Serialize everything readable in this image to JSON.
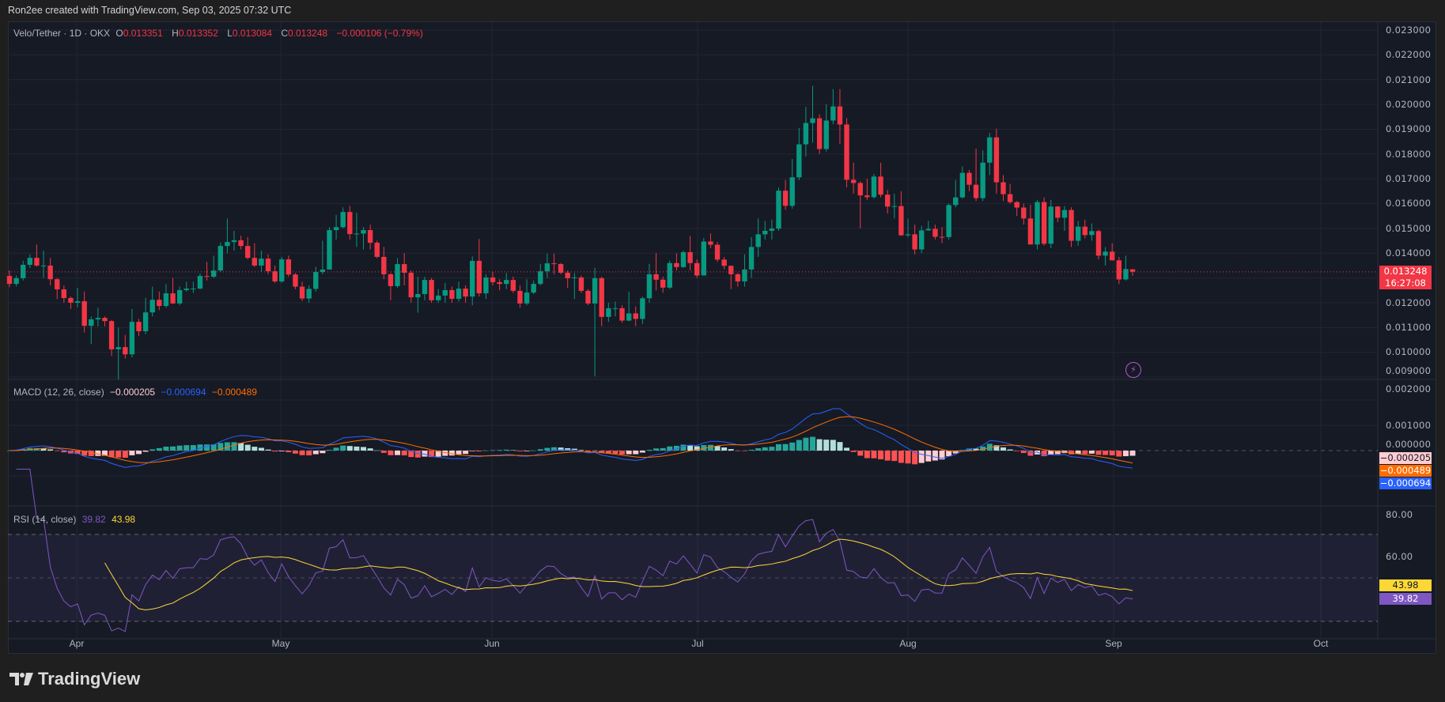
{
  "credit": "Ron2ee created with TradingView.com, Sep 03, 2025 07:32 UTC",
  "legend": {
    "symbol": "Velo/Tether · 1D · OKX",
    "o_label": "O",
    "o": "0.013351",
    "h_label": "H",
    "h": "0.013352",
    "l_label": "L",
    "l": "0.013084",
    "c_label": "C",
    "c": "0.013248",
    "change": "−0.000106 (−0.79%)"
  },
  "price_axis": [
    "0.023000",
    "0.022000",
    "0.021000",
    "0.020000",
    "0.019000",
    "0.018000",
    "0.017000",
    "0.016000",
    "0.015000",
    "0.014000",
    "0.012000",
    "0.011000",
    "0.010000",
    "0.009000"
  ],
  "price_tag": {
    "price": "0.013248",
    "countdown": "16:27:08"
  },
  "macd": {
    "title": "MACD (12, 26, close)",
    "histogram": "−0.000205",
    "macd": "−0.000694",
    "signal": "−0.000489",
    "axis": [
      "0.002000",
      "0.001000",
      "0.000000"
    ]
  },
  "rsi": {
    "title": "RSI (14, close)",
    "rsi": "39.82",
    "ma": "43.98",
    "axis": [
      "80.00",
      "60.00"
    ]
  },
  "months": [
    "Apr",
    "May",
    "Jun",
    "Jul",
    "Aug",
    "Sep",
    "Oct"
  ],
  "logo": "TradingView",
  "colors": {
    "up": "#089981",
    "down": "#f23645",
    "macd": "#2962ff",
    "signal": "#ff6d00",
    "rsi": "#7e57c2",
    "rsi_ma": "#fdd835"
  },
  "chart_data": {
    "type": "candlestick",
    "title": "Velo/Tether · 1D · OKX",
    "interval": "1D",
    "x_range": [
      "Mar",
      "Oct"
    ],
    "ylim": [
      0.009,
      0.023
    ],
    "grid": true,
    "current_price": 0.013248,
    "indicators": [
      "MACD (12, 26, close)",
      "RSI (14, close)"
    ],
    "rsi_levels": [
      70,
      50,
      30
    ],
    "candles_ohlc": [
      [
        0.01308,
        0.0133,
        0.01263,
        0.01276
      ],
      [
        0.01276,
        0.0131,
        0.01266,
        0.01299
      ],
      [
        0.01299,
        0.0137,
        0.0129,
        0.01353
      ],
      [
        0.01353,
        0.01395,
        0.0134,
        0.01381
      ],
      [
        0.01381,
        0.01435,
        0.01345,
        0.0135
      ],
      [
        0.0135,
        0.0141,
        0.013,
        0.0135
      ],
      [
        0.0135,
        0.0138,
        0.0127,
        0.01295
      ],
      [
        0.01295,
        0.013,
        0.01215,
        0.01254
      ],
      [
        0.01254,
        0.0127,
        0.012,
        0.01219
      ],
      [
        0.01219,
        0.01225,
        0.01175,
        0.012
      ],
      [
        0.012,
        0.0126,
        0.01182,
        0.01206
      ],
      [
        0.01206,
        0.01245,
        0.0108,
        0.01107
      ],
      [
        0.01107,
        0.01145,
        0.01033,
        0.01133
      ],
      [
        0.01133,
        0.0118,
        0.01105,
        0.01139
      ],
      [
        0.01139,
        0.01145,
        0.01105,
        0.01126
      ],
      [
        0.01126,
        0.0113,
        0.00985,
        0.01012
      ],
      [
        0.01012,
        0.011,
        0.0089,
        0.01021
      ],
      [
        0.01021,
        0.0107,
        0.00975,
        0.00992
      ],
      [
        0.00992,
        0.01175,
        0.0098,
        0.01123
      ],
      [
        0.01123,
        0.01135,
        0.01065,
        0.01085
      ],
      [
        0.01085,
        0.0122,
        0.01073,
        0.01161
      ],
      [
        0.01161,
        0.01265,
        0.01145,
        0.01212
      ],
      [
        0.01212,
        0.01245,
        0.0117,
        0.01187
      ],
      [
        0.01187,
        0.01275,
        0.0118,
        0.01238
      ],
      [
        0.01238,
        0.013,
        0.01195,
        0.01197
      ],
      [
        0.01197,
        0.01265,
        0.0119,
        0.01251
      ],
      [
        0.01251,
        0.01285,
        0.01245,
        0.01257
      ],
      [
        0.01257,
        0.01285,
        0.0124,
        0.01257
      ],
      [
        0.01257,
        0.01318,
        0.01255,
        0.01308
      ],
      [
        0.01308,
        0.01365,
        0.0129,
        0.01305
      ],
      [
        0.01305,
        0.0139,
        0.013,
        0.0133
      ],
      [
        0.0133,
        0.01443,
        0.01325,
        0.01429
      ],
      [
        0.01429,
        0.0154,
        0.014,
        0.01445
      ],
      [
        0.01445,
        0.0149,
        0.0141,
        0.01452
      ],
      [
        0.01452,
        0.0147,
        0.01415,
        0.01429
      ],
      [
        0.01429,
        0.01465,
        0.01375,
        0.01381
      ],
      [
        0.01381,
        0.0144,
        0.01345,
        0.0135
      ],
      [
        0.0135,
        0.0141,
        0.01325,
        0.01378
      ],
      [
        0.01378,
        0.01395,
        0.01315,
        0.01327
      ],
      [
        0.01327,
        0.0135,
        0.0128,
        0.01286
      ],
      [
        0.01286,
        0.01385,
        0.0128,
        0.01375
      ],
      [
        0.01375,
        0.0139,
        0.01305,
        0.01314
      ],
      [
        0.01314,
        0.0132,
        0.01255,
        0.01265
      ],
      [
        0.01265,
        0.01285,
        0.01207,
        0.01217
      ],
      [
        0.01217,
        0.0127,
        0.012,
        0.01256
      ],
      [
        0.01256,
        0.01345,
        0.01245,
        0.01324
      ],
      [
        0.01324,
        0.0145,
        0.01315,
        0.01334
      ],
      [
        0.01334,
        0.01505,
        0.01334,
        0.01493
      ],
      [
        0.01493,
        0.01555,
        0.01455,
        0.01505
      ],
      [
        0.01505,
        0.01585,
        0.015,
        0.01566
      ],
      [
        0.01566,
        0.01591,
        0.01455,
        0.01477
      ],
      [
        0.01477,
        0.01563,
        0.01425,
        0.01479
      ],
      [
        0.01479,
        0.01505,
        0.01415,
        0.01493
      ],
      [
        0.01493,
        0.01515,
        0.01415,
        0.01442
      ],
      [
        0.01442,
        0.0145,
        0.0138,
        0.01385
      ],
      [
        0.01385,
        0.01425,
        0.01295,
        0.01315
      ],
      [
        0.01315,
        0.0132,
        0.0121,
        0.01267
      ],
      [
        0.01267,
        0.0138,
        0.0126,
        0.01356
      ],
      [
        0.01356,
        0.014,
        0.0127,
        0.01321
      ],
      [
        0.01321,
        0.0133,
        0.012,
        0.01222
      ],
      [
        0.01222,
        0.01305,
        0.0116,
        0.01235
      ],
      [
        0.01235,
        0.01305,
        0.0121,
        0.01292
      ],
      [
        0.01292,
        0.013,
        0.012,
        0.0121
      ],
      [
        0.0121,
        0.01255,
        0.012,
        0.01229
      ],
      [
        0.01229,
        0.0128,
        0.012,
        0.01251
      ],
      [
        0.01251,
        0.01265,
        0.012,
        0.01216
      ],
      [
        0.01216,
        0.01285,
        0.01205,
        0.01257
      ],
      [
        0.01257,
        0.0127,
        0.012,
        0.01225
      ],
      [
        0.01225,
        0.01387,
        0.0119,
        0.01369
      ],
      [
        0.01369,
        0.01457,
        0.01225,
        0.01238
      ],
      [
        0.01238,
        0.01315,
        0.01215,
        0.01302
      ],
      [
        0.01302,
        0.01325,
        0.0127,
        0.01283
      ],
      [
        0.01283,
        0.01295,
        0.0125,
        0.01276
      ],
      [
        0.01276,
        0.0132,
        0.01255,
        0.01292
      ],
      [
        0.01292,
        0.01305,
        0.0124,
        0.01248
      ],
      [
        0.01248,
        0.0127,
        0.0118,
        0.01197
      ],
      [
        0.01197,
        0.01295,
        0.0119,
        0.01241
      ],
      [
        0.01241,
        0.0129,
        0.01235,
        0.01276
      ],
      [
        0.01276,
        0.01357,
        0.0127,
        0.01327
      ],
      [
        0.01327,
        0.01398,
        0.013,
        0.01359
      ],
      [
        0.01359,
        0.01398,
        0.01315,
        0.01356
      ],
      [
        0.01356,
        0.0136,
        0.01315,
        0.01321
      ],
      [
        0.01321,
        0.0133,
        0.0126,
        0.01299
      ],
      [
        0.01299,
        0.0132,
        0.01215,
        0.01302
      ],
      [
        0.01302,
        0.0131,
        0.0124,
        0.01248
      ],
      [
        0.01248,
        0.01255,
        0.0119,
        0.01197
      ],
      [
        0.01197,
        0.0134,
        0.00903,
        0.01299
      ],
      [
        0.01299,
        0.01305,
        0.01105,
        0.01143
      ],
      [
        0.01143,
        0.012,
        0.01123,
        0.01178
      ],
      [
        0.01178,
        0.01205,
        0.01145,
        0.01178
      ],
      [
        0.01178,
        0.0119,
        0.0112,
        0.01128
      ],
      [
        0.01128,
        0.01245,
        0.01125,
        0.01157
      ],
      [
        0.01157,
        0.01185,
        0.01105,
        0.01135
      ],
      [
        0.01135,
        0.01225,
        0.01115,
        0.01218
      ],
      [
        0.01218,
        0.01357,
        0.012,
        0.01315
      ],
      [
        0.01315,
        0.014,
        0.0125,
        0.01293
      ],
      [
        0.01293,
        0.01305,
        0.0124,
        0.01261
      ],
      [
        0.01261,
        0.0137,
        0.01255,
        0.0136
      ],
      [
        0.0136,
        0.014,
        0.0133,
        0.01344
      ],
      [
        0.01344,
        0.0141,
        0.0134,
        0.01404
      ],
      [
        0.01404,
        0.0147,
        0.0133,
        0.0136
      ],
      [
        0.0136,
        0.01375,
        0.013,
        0.0131
      ],
      [
        0.0131,
        0.01462,
        0.0131,
        0.01447
      ],
      [
        0.01447,
        0.0148,
        0.0142,
        0.01434
      ],
      [
        0.01434,
        0.01445,
        0.01365,
        0.01374
      ],
      [
        0.01374,
        0.01385,
        0.01335,
        0.01349
      ],
      [
        0.01349,
        0.0135,
        0.01255,
        0.01315
      ],
      [
        0.01315,
        0.0132,
        0.01265,
        0.01286
      ],
      [
        0.01286,
        0.01395,
        0.01265,
        0.01334
      ],
      [
        0.01334,
        0.01465,
        0.013,
        0.01425
      ],
      [
        0.01425,
        0.0154,
        0.01385,
        0.01476
      ],
      [
        0.01476,
        0.0153,
        0.01455,
        0.0149
      ],
      [
        0.0149,
        0.01535,
        0.01455,
        0.01499
      ],
      [
        0.01499,
        0.01665,
        0.0149,
        0.01652
      ],
      [
        0.01652,
        0.01695,
        0.01575,
        0.01591
      ],
      [
        0.01591,
        0.0178,
        0.0158,
        0.01706
      ],
      [
        0.01706,
        0.01905,
        0.01695,
        0.01839
      ],
      [
        0.01839,
        0.0199,
        0.0179,
        0.01925
      ],
      [
        0.01925,
        0.02075,
        0.01845,
        0.01944
      ],
      [
        0.01944,
        0.0196,
        0.018,
        0.0182
      ],
      [
        0.0182,
        0.02,
        0.0181,
        0.01935
      ],
      [
        0.01935,
        0.02062,
        0.0192,
        0.01992
      ],
      [
        0.01992,
        0.02062,
        0.0184,
        0.01919
      ],
      [
        0.01919,
        0.01945,
        0.01665,
        0.01696
      ],
      [
        0.01696,
        0.01765,
        0.0164,
        0.01683
      ],
      [
        0.01683,
        0.0169,
        0.015,
        0.01633
      ],
      [
        0.01633,
        0.017,
        0.01615,
        0.01626
      ],
      [
        0.01626,
        0.0172,
        0.0162,
        0.01709
      ],
      [
        0.01709,
        0.01765,
        0.01625,
        0.01636
      ],
      [
        0.01636,
        0.01655,
        0.0156,
        0.01588
      ],
      [
        0.01588,
        0.0164,
        0.0154,
        0.0159
      ],
      [
        0.0159,
        0.0165,
        0.0147,
        0.01472
      ],
      [
        0.01472,
        0.0154,
        0.01465,
        0.01476
      ],
      [
        0.01476,
        0.01515,
        0.01395,
        0.01415
      ],
      [
        0.01415,
        0.0151,
        0.014,
        0.01492
      ],
      [
        0.01492,
        0.0153,
        0.0149,
        0.01498
      ],
      [
        0.01498,
        0.01515,
        0.01455,
        0.01466
      ],
      [
        0.01466,
        0.01505,
        0.0144,
        0.01465
      ],
      [
        0.01465,
        0.016,
        0.01455,
        0.01594
      ],
      [
        0.01594,
        0.01695,
        0.01585,
        0.01625
      ],
      [
        0.01625,
        0.0175,
        0.0162,
        0.01724
      ],
      [
        0.01724,
        0.01735,
        0.0165,
        0.01676
      ],
      [
        0.01676,
        0.01822,
        0.0161,
        0.01622
      ],
      [
        0.01622,
        0.01815,
        0.0161,
        0.01765
      ],
      [
        0.01765,
        0.01885,
        0.01715,
        0.01867
      ],
      [
        0.01867,
        0.01902,
        0.0164,
        0.01686
      ],
      [
        0.01686,
        0.01715,
        0.0161,
        0.01638
      ],
      [
        0.01638,
        0.0168,
        0.016,
        0.01606
      ],
      [
        0.01606,
        0.0161,
        0.0155,
        0.01584
      ],
      [
        0.01584,
        0.016,
        0.01515,
        0.0154
      ],
      [
        0.0154,
        0.01595,
        0.01435,
        0.01435
      ],
      [
        0.01435,
        0.01615,
        0.01415,
        0.01606
      ],
      [
        0.01606,
        0.01625,
        0.0143,
        0.01438
      ],
      [
        0.01438,
        0.01615,
        0.0142,
        0.01588
      ],
      [
        0.01588,
        0.0159,
        0.01525,
        0.01543
      ],
      [
        0.01543,
        0.0159,
        0.0149,
        0.01574
      ],
      [
        0.01574,
        0.01585,
        0.01425,
        0.0145
      ],
      [
        0.0145,
        0.0153,
        0.0143,
        0.01507
      ],
      [
        0.01507,
        0.01535,
        0.0146,
        0.01473
      ],
      [
        0.01473,
        0.0152,
        0.0145,
        0.01489
      ],
      [
        0.01489,
        0.01495,
        0.01375,
        0.0139
      ],
      [
        0.0139,
        0.01425,
        0.0135,
        0.01406
      ],
      [
        0.01406,
        0.0144,
        0.0137,
        0.01371
      ],
      [
        0.01371,
        0.01385,
        0.01275,
        0.01294
      ],
      [
        0.01294,
        0.0139,
        0.0129,
        0.01336
      ],
      [
        0.013351,
        0.013352,
        0.013084,
        0.013248
      ]
    ]
  }
}
